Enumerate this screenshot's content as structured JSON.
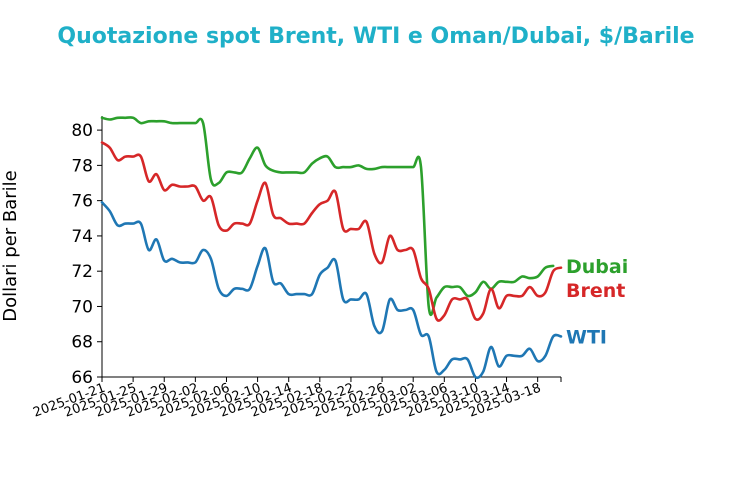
{
  "chart_data": {
    "type": "line",
    "title": "Quotazione spot Brent, WTI e Oman/Dubai, $/Barile",
    "xlabel": "",
    "ylabel": "Dollari per Barile",
    "ylim": [
      66,
      80.8
    ],
    "yticks": [
      66,
      68,
      70,
      72,
      74,
      76,
      78,
      80
    ],
    "xlim": [
      "2025-01-21",
      "2025-03-21"
    ],
    "xticks": [
      "2025-01-21",
      "2025-01-25",
      "2025-01-29",
      "2025-02-02",
      "2025-02-06",
      "2025-02-10",
      "2025-02-14",
      "2025-02-18",
      "2025-02-22",
      "2025-02-26",
      "2025-03-02",
      "2025-03-06",
      "2025-03-10",
      "2025-03-14",
      "2025-03-18"
    ],
    "grid": false,
    "series": [
      {
        "name": "Dubai",
        "color": "#2ca02c",
        "points": [
          [
            "2025-01-21",
            80.7
          ],
          [
            "2025-01-22",
            80.6
          ],
          [
            "2025-01-23",
            80.7
          ],
          [
            "2025-01-24",
            80.7
          ],
          [
            "2025-01-25",
            80.7
          ],
          [
            "2025-01-26",
            80.4
          ],
          [
            "2025-01-27",
            80.5
          ],
          [
            "2025-01-28",
            80.5
          ],
          [
            "2025-01-29",
            80.5
          ],
          [
            "2025-01-30",
            80.4
          ],
          [
            "2025-01-31",
            80.4
          ],
          [
            "2025-02-01",
            80.4
          ],
          [
            "2025-02-02",
            80.4
          ],
          [
            "2025-02-03",
            80.4
          ],
          [
            "2025-02-04",
            77.2
          ],
          [
            "2025-02-05",
            77.0
          ],
          [
            "2025-02-06",
            77.6
          ],
          [
            "2025-02-07",
            77.6
          ],
          [
            "2025-02-08",
            77.6
          ],
          [
            "2025-02-09",
            78.4
          ],
          [
            "2025-02-10",
            79.0
          ],
          [
            "2025-02-11",
            78.0
          ],
          [
            "2025-02-12",
            77.7
          ],
          [
            "2025-02-13",
            77.6
          ],
          [
            "2025-02-14",
            77.6
          ],
          [
            "2025-02-15",
            77.6
          ],
          [
            "2025-02-16",
            77.6
          ],
          [
            "2025-02-17",
            78.1
          ],
          [
            "2025-02-18",
            78.4
          ],
          [
            "2025-02-19",
            78.5
          ],
          [
            "2025-02-20",
            77.9
          ],
          [
            "2025-02-21",
            77.9
          ],
          [
            "2025-02-22",
            77.9
          ],
          [
            "2025-02-23",
            78.0
          ],
          [
            "2025-02-24",
            77.8
          ],
          [
            "2025-02-25",
            77.8
          ],
          [
            "2025-02-26",
            77.9
          ],
          [
            "2025-02-27",
            77.9
          ],
          [
            "2025-02-28",
            77.9
          ],
          [
            "2025-03-01",
            77.9
          ],
          [
            "2025-03-02",
            77.9
          ],
          [
            "2025-03-03",
            77.9
          ],
          [
            "2025-03-04",
            70.0
          ],
          [
            "2025-03-05",
            70.5
          ],
          [
            "2025-03-06",
            71.1
          ],
          [
            "2025-03-07",
            71.1
          ],
          [
            "2025-03-08",
            71.1
          ],
          [
            "2025-03-09",
            70.6
          ],
          [
            "2025-03-10",
            70.8
          ],
          [
            "2025-03-11",
            71.4
          ],
          [
            "2025-03-12",
            71.0
          ],
          [
            "2025-03-13",
            71.4
          ],
          [
            "2025-03-14",
            71.4
          ],
          [
            "2025-03-15",
            71.4
          ],
          [
            "2025-03-16",
            71.7
          ],
          [
            "2025-03-17",
            71.6
          ],
          [
            "2025-03-18",
            71.7
          ],
          [
            "2025-03-19",
            72.2
          ],
          [
            "2025-03-20",
            72.3
          ]
        ]
      },
      {
        "name": "Brent",
        "color": "#d62728",
        "points": [
          [
            "2025-01-21",
            79.3
          ],
          [
            "2025-01-22",
            79.0
          ],
          [
            "2025-01-23",
            78.3
          ],
          [
            "2025-01-24",
            78.5
          ],
          [
            "2025-01-25",
            78.5
          ],
          [
            "2025-01-26",
            78.5
          ],
          [
            "2025-01-27",
            77.1
          ],
          [
            "2025-01-28",
            77.5
          ],
          [
            "2025-01-29",
            76.6
          ],
          [
            "2025-01-30",
            76.9
          ],
          [
            "2025-01-31",
            76.8
          ],
          [
            "2025-02-01",
            76.8
          ],
          [
            "2025-02-02",
            76.8
          ],
          [
            "2025-02-03",
            76.0
          ],
          [
            "2025-02-04",
            76.2
          ],
          [
            "2025-02-05",
            74.6
          ],
          [
            "2025-02-06",
            74.3
          ],
          [
            "2025-02-07",
            74.7
          ],
          [
            "2025-02-08",
            74.7
          ],
          [
            "2025-02-09",
            74.7
          ],
          [
            "2025-02-10",
            76.0
          ],
          [
            "2025-02-11",
            77.0
          ],
          [
            "2025-02-12",
            75.2
          ],
          [
            "2025-02-13",
            75.0
          ],
          [
            "2025-02-14",
            74.7
          ],
          [
            "2025-02-15",
            74.7
          ],
          [
            "2025-02-16",
            74.7
          ],
          [
            "2025-02-17",
            75.3
          ],
          [
            "2025-02-18",
            75.8
          ],
          [
            "2025-02-19",
            76.0
          ],
          [
            "2025-02-20",
            76.5
          ],
          [
            "2025-02-21",
            74.4
          ],
          [
            "2025-02-22",
            74.4
          ],
          [
            "2025-02-23",
            74.4
          ],
          [
            "2025-02-24",
            74.8
          ],
          [
            "2025-02-25",
            73.0
          ],
          [
            "2025-02-26",
            72.5
          ],
          [
            "2025-02-27",
            74.0
          ],
          [
            "2025-02-28",
            73.2
          ],
          [
            "2025-03-01",
            73.2
          ],
          [
            "2025-03-02",
            73.2
          ],
          [
            "2025-03-03",
            71.6
          ],
          [
            "2025-03-04",
            71.0
          ],
          [
            "2025-03-05",
            69.3
          ],
          [
            "2025-03-06",
            69.5
          ],
          [
            "2025-03-07",
            70.4
          ],
          [
            "2025-03-08",
            70.4
          ],
          [
            "2025-03-09",
            70.4
          ],
          [
            "2025-03-10",
            69.3
          ],
          [
            "2025-03-11",
            69.6
          ],
          [
            "2025-03-12",
            71.0
          ],
          [
            "2025-03-13",
            69.9
          ],
          [
            "2025-03-14",
            70.6
          ],
          [
            "2025-03-15",
            70.6
          ],
          [
            "2025-03-16",
            70.6
          ],
          [
            "2025-03-17",
            71.1
          ],
          [
            "2025-03-18",
            70.6
          ],
          [
            "2025-03-19",
            70.8
          ],
          [
            "2025-03-20",
            72.0
          ],
          [
            "2025-03-21",
            72.2
          ]
        ]
      },
      {
        "name": "WTI",
        "color": "#1f77b4",
        "points": [
          [
            "2025-01-21",
            75.9
          ],
          [
            "2025-01-22",
            75.4
          ],
          [
            "2025-01-23",
            74.6
          ],
          [
            "2025-01-24",
            74.7
          ],
          [
            "2025-01-25",
            74.7
          ],
          [
            "2025-01-26",
            74.7
          ],
          [
            "2025-01-27",
            73.2
          ],
          [
            "2025-01-28",
            73.8
          ],
          [
            "2025-01-29",
            72.6
          ],
          [
            "2025-01-30",
            72.7
          ],
          [
            "2025-01-31",
            72.5
          ],
          [
            "2025-02-01",
            72.5
          ],
          [
            "2025-02-02",
            72.5
          ],
          [
            "2025-02-03",
            73.2
          ],
          [
            "2025-02-04",
            72.7
          ],
          [
            "2025-02-05",
            71.0
          ],
          [
            "2025-02-06",
            70.6
          ],
          [
            "2025-02-07",
            71.0
          ],
          [
            "2025-02-08",
            71.0
          ],
          [
            "2025-02-09",
            71.0
          ],
          [
            "2025-02-10",
            72.3
          ],
          [
            "2025-02-11",
            73.3
          ],
          [
            "2025-02-12",
            71.4
          ],
          [
            "2025-02-13",
            71.3
          ],
          [
            "2025-02-14",
            70.7
          ],
          [
            "2025-02-15",
            70.7
          ],
          [
            "2025-02-16",
            70.7
          ],
          [
            "2025-02-17",
            70.7
          ],
          [
            "2025-02-18",
            71.8
          ],
          [
            "2025-02-19",
            72.2
          ],
          [
            "2025-02-20",
            72.6
          ],
          [
            "2025-02-21",
            70.4
          ],
          [
            "2025-02-22",
            70.4
          ],
          [
            "2025-02-23",
            70.4
          ],
          [
            "2025-02-24",
            70.7
          ],
          [
            "2025-02-25",
            68.9
          ],
          [
            "2025-02-26",
            68.6
          ],
          [
            "2025-02-27",
            70.4
          ],
          [
            "2025-02-28",
            69.8
          ],
          [
            "2025-03-01",
            69.8
          ],
          [
            "2025-03-02",
            69.8
          ],
          [
            "2025-03-03",
            68.4
          ],
          [
            "2025-03-04",
            68.3
          ],
          [
            "2025-03-05",
            66.3
          ],
          [
            "2025-03-06",
            66.4
          ],
          [
            "2025-03-07",
            67.0
          ],
          [
            "2025-03-08",
            67.0
          ],
          [
            "2025-03-09",
            67.0
          ],
          [
            "2025-03-10",
            66.0
          ],
          [
            "2025-03-11",
            66.3
          ],
          [
            "2025-03-12",
            67.7
          ],
          [
            "2025-03-13",
            66.6
          ],
          [
            "2025-03-14",
            67.2
          ],
          [
            "2025-03-15",
            67.2
          ],
          [
            "2025-03-16",
            67.2
          ],
          [
            "2025-03-17",
            67.6
          ],
          [
            "2025-03-18",
            66.9
          ],
          [
            "2025-03-19",
            67.2
          ],
          [
            "2025-03-20",
            68.3
          ],
          [
            "2025-03-21",
            68.3
          ]
        ]
      }
    ]
  }
}
